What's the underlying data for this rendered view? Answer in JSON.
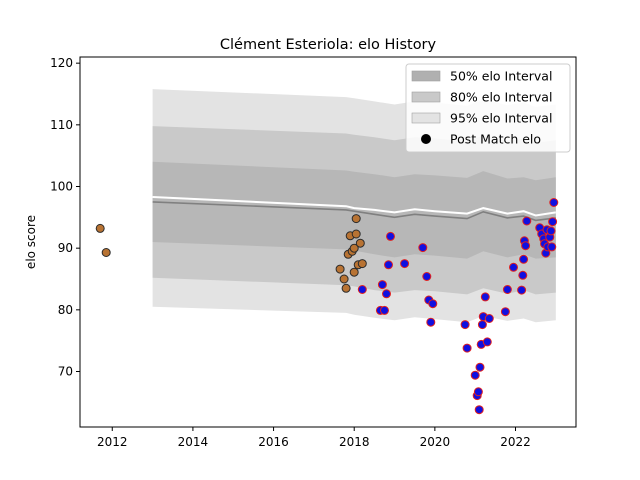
{
  "chart_data": {
    "type": "scatter",
    "title": "Clément Esteriola: elo History",
    "xlabel": "",
    "ylabel": "elo score",
    "xlim": [
      2011.2,
      2023.5
    ],
    "ylim": [
      61,
      121
    ],
    "xticks": [
      2012,
      2014,
      2016,
      2018,
      2020,
      2022
    ],
    "yticks": [
      70,
      80,
      90,
      100,
      110,
      120
    ],
    "grid": false,
    "legend_position": "top-right",
    "legend": [
      {
        "key": "band50",
        "label": "50% elo Interval",
        "color": "#b0b0b0"
      },
      {
        "key": "band80",
        "label": "80% elo Interval",
        "color": "#c9c9c9"
      },
      {
        "key": "band95",
        "label": "95% elo Interval",
        "color": "#e3e3e3"
      },
      {
        "key": "points",
        "label": "Post Match elo",
        "color": "#000000"
      }
    ],
    "colors": {
      "band50": "#b0b0b0",
      "band80": "#c9c9c9",
      "band95": "#e3e3e3",
      "mean_line": "#808080",
      "median_line": "#ffffff",
      "early_marker_fill": "#b87333",
      "early_marker_edge": "#2b2b2b",
      "late_marker_fill": "#1010e0",
      "late_marker_edge": "#e02020"
    },
    "intervals": {
      "x": [
        2013.0,
        2017.8,
        2018.0,
        2018.5,
        2019.0,
        2019.5,
        2020.0,
        2020.8,
        2021.2,
        2021.8,
        2022.2,
        2022.5,
        2023.0
      ],
      "mean": [
        97.5,
        96.2,
        96.0,
        95.5,
        95.0,
        95.5,
        95.2,
        94.8,
        95.9,
        94.9,
        95.2,
        94.5,
        94.9
      ],
      "median": [
        98.3,
        96.8,
        96.5,
        96.2,
        95.8,
        96.3,
        96.0,
        95.6,
        96.5,
        95.6,
        96.0,
        95.3,
        95.8
      ],
      "p50_low": [
        91.0,
        89.8,
        89.6,
        89.0,
        88.5,
        89.0,
        88.8,
        88.3,
        89.5,
        88.5,
        89.0,
        88.3,
        88.5
      ],
      "p50_high": [
        104.0,
        102.6,
        102.4,
        102.0,
        101.5,
        102.0,
        101.8,
        101.4,
        102.5,
        101.3,
        101.5,
        101.0,
        101.5
      ],
      "p80_low": [
        85.2,
        84.0,
        83.8,
        83.2,
        82.8,
        83.2,
        83.0,
        82.5,
        83.5,
        82.6,
        83.2,
        82.5,
        82.8
      ],
      "p80_high": [
        109.8,
        108.6,
        108.4,
        108.0,
        107.5,
        108.0,
        107.8,
        107.3,
        108.3,
        107.4,
        107.8,
        107.1,
        107.5
      ],
      "p95_low": [
        80.5,
        79.5,
        79.2,
        78.7,
        78.3,
        78.8,
        78.5,
        78.0,
        79.0,
        78.2,
        78.6,
        78.0,
        78.3
      ],
      "p95_high": [
        115.8,
        114.5,
        114.3,
        113.8,
        113.3,
        113.8,
        113.6,
        113.1,
        114.1,
        113.2,
        113.6,
        112.9,
        113.3
      ]
    },
    "series": [
      {
        "style": "early",
        "x": [
          2011.7,
          2011.85,
          2017.65,
          2017.75,
          2017.8,
          2017.85,
          2017.9,
          2017.95,
          2018.0,
          2018.0,
          2018.05,
          2018.05,
          2018.1,
          2018.15,
          2018.2
        ],
        "y": [
          93.2,
          89.3,
          86.6,
          85.0,
          83.5,
          89.0,
          92.0,
          89.5,
          86.1,
          90.0,
          94.8,
          92.3,
          87.3,
          90.8,
          87.5
        ]
      },
      {
        "style": "late",
        "x": [
          2018.2,
          2018.65,
          2018.7,
          2018.75,
          2018.8,
          2018.85,
          2018.9,
          2019.25,
          2019.7,
          2019.8,
          2019.85,
          2019.9,
          2019.95,
          2020.75,
          2020.8,
          2021.0,
          2021.05,
          2021.08,
          2021.1,
          2021.12,
          2021.15,
          2021.18,
          2021.2,
          2021.25,
          2021.3,
          2021.35,
          2021.75,
          2021.8,
          2021.95,
          2022.15,
          2022.18,
          2022.2,
          2022.22,
          2022.25,
          2022.28,
          2022.6,
          2022.65,
          2022.7,
          2022.72,
          2022.75,
          2022.78,
          2022.8,
          2022.85,
          2022.88,
          2022.9,
          2022.92,
          2022.95
        ],
        "y": [
          83.3,
          79.9,
          84.1,
          79.9,
          82.6,
          87.3,
          91.9,
          87.5,
          90.1,
          85.4,
          81.6,
          78.0,
          81.0,
          77.6,
          73.8,
          69.4,
          66.1,
          66.7,
          63.8,
          70.7,
          74.4,
          77.6,
          78.9,
          82.1,
          74.8,
          78.6,
          79.7,
          83.3,
          86.9,
          83.2,
          85.6,
          88.2,
          91.2,
          90.4,
          94.4,
          93.3,
          92.3,
          91.5,
          90.7,
          89.2,
          93.0,
          90.2,
          91.8,
          92.8,
          90.2,
          94.3,
          97.4
        ]
      }
    ]
  }
}
